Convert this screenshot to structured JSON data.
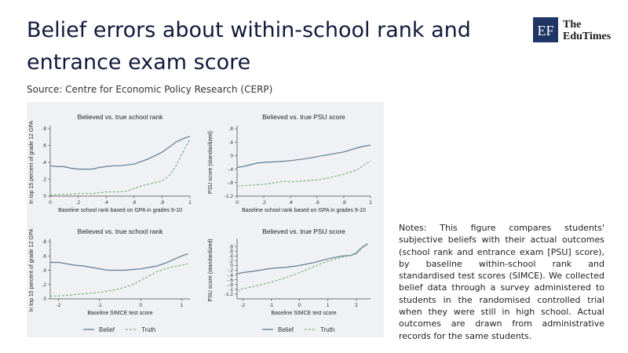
{
  "header": {
    "title": "Belief errors about within-school rank and entrance exam score",
    "source": "Source: Centre for Economic Policy Research (CERP)",
    "logo_mark": "EF",
    "logo_line1": "The",
    "logo_line2": "EduTimes"
  },
  "notes": "Notes: This figure compares students' subjective beliefs with their actual outcomes (school rank and entrance exam [PSU] score), by baseline within-school rank and standardised test scores (SIMCE). We collected belief data through a survey administered to students in the randomised controlled trial when they were still in high school. Actual outcomes are drawn from administrative records for the same students.",
  "colors": {
    "panel_bg": "#f0f1f4",
    "belief": "#5a7a93",
    "truth": "#7ab57a",
    "logo": "#1f3563"
  },
  "chart_data": [
    {
      "type": "line",
      "title": "Believed vs. true school rank",
      "xlabel": "Baseline school rank based on GPA in grades 9-10",
      "ylabel": "In top 15 percent of grade 12 GPA",
      "xlim": [
        0,
        1
      ],
      "ylim": [
        0,
        0.8
      ],
      "xticks": [
        "0",
        ".2",
        ".4",
        ".6",
        ".8",
        "1"
      ],
      "xtickvals": [
        0,
        0.2,
        0.4,
        0.6,
        0.8,
        1
      ],
      "yticks": [
        "0",
        ".2",
        ".4",
        ".6",
        ".8"
      ],
      "ytickvals": [
        0,
        0.2,
        0.4,
        0.6,
        0.8
      ],
      "series": [
        {
          "name": "Belief",
          "style": "solid",
          "x": [
            0,
            0.05,
            0.1,
            0.15,
            0.2,
            0.25,
            0.3,
            0.35,
            0.4,
            0.45,
            0.5,
            0.55,
            0.6,
            0.65,
            0.7,
            0.75,
            0.8,
            0.85,
            0.9,
            0.95,
            1.0
          ],
          "y": [
            0.36,
            0.35,
            0.35,
            0.33,
            0.32,
            0.32,
            0.32,
            0.34,
            0.35,
            0.36,
            0.36,
            0.37,
            0.38,
            0.41,
            0.44,
            0.48,
            0.52,
            0.58,
            0.64,
            0.68,
            0.71
          ]
        },
        {
          "name": "Truth",
          "style": "dashed",
          "x": [
            0,
            0.05,
            0.1,
            0.15,
            0.2,
            0.25,
            0.3,
            0.35,
            0.4,
            0.45,
            0.5,
            0.55,
            0.6,
            0.65,
            0.7,
            0.75,
            0.8,
            0.85,
            0.9,
            0.95,
            1.0
          ],
          "y": [
            0.01,
            0.02,
            0.02,
            0.02,
            0.03,
            0.03,
            0.03,
            0.04,
            0.05,
            0.05,
            0.05,
            0.06,
            0.09,
            0.12,
            0.14,
            0.16,
            0.18,
            0.24,
            0.36,
            0.52,
            0.68
          ]
        }
      ]
    },
    {
      "type": "line",
      "title": "Believed vs. true PSU score",
      "xlabel": "Baseline school rank based on GPA in grades 9-10",
      "ylabel": "PSU score (standardized)",
      "xlim": [
        0,
        1
      ],
      "ylim": [
        -1.2,
        0.8
      ],
      "xticks": [
        "0",
        ".2",
        ".4",
        ".6",
        ".8",
        "1"
      ],
      "xtickvals": [
        0,
        0.2,
        0.4,
        0.6,
        0.8,
        1
      ],
      "yticks": [
        ".8",
        ".4",
        "0",
        "-.4",
        "-.8",
        "-1.2"
      ],
      "ytickvals": [
        0.8,
        0.4,
        0,
        -0.4,
        -0.8,
        -1.2
      ],
      "series": [
        {
          "name": "Belief",
          "style": "solid",
          "x": [
            0,
            0.05,
            0.1,
            0.15,
            0.2,
            0.3,
            0.4,
            0.5,
            0.6,
            0.7,
            0.8,
            0.9,
            0.95,
            1.0
          ],
          "y": [
            -0.35,
            -0.32,
            -0.27,
            -0.22,
            -0.2,
            -0.18,
            -0.15,
            -0.1,
            -0.03,
            0.04,
            0.11,
            0.23,
            0.28,
            0.31
          ]
        },
        {
          "name": "Truth",
          "style": "dashed",
          "x": [
            0,
            0.1,
            0.2,
            0.3,
            0.35,
            0.4,
            0.5,
            0.6,
            0.7,
            0.8,
            0.9,
            0.95,
            1.0
          ],
          "y": [
            -0.9,
            -0.88,
            -0.85,
            -0.79,
            -0.76,
            -0.78,
            -0.75,
            -0.72,
            -0.65,
            -0.55,
            -0.42,
            -0.28,
            -0.15
          ]
        }
      ]
    },
    {
      "type": "line",
      "title": "Believed vs. true school rank",
      "xlabel": "Baseline SIMCE test score",
      "ylabel": "In top 15 percent of grade 12 GPA",
      "xlim": [
        -2.2,
        1.2
      ],
      "ylim": [
        0,
        0.8
      ],
      "xticks": [
        "-2",
        "-1",
        "0",
        "1"
      ],
      "xtickvals": [
        -2,
        -1,
        0,
        1
      ],
      "yticks": [
        "0",
        ".2",
        ".4",
        ".6",
        ".8"
      ],
      "ytickvals": [
        0,
        0.2,
        0.4,
        0.6,
        0.8
      ],
      "series": [
        {
          "name": "Belief",
          "style": "solid",
          "x": [
            -2.2,
            -2,
            -1.8,
            -1.6,
            -1.4,
            -1.2,
            -1.0,
            -0.8,
            -0.6,
            -0.4,
            -0.2,
            0,
            0.2,
            0.4,
            0.6,
            0.8,
            1.0,
            1.15
          ],
          "y": [
            0.51,
            0.51,
            0.49,
            0.47,
            0.46,
            0.44,
            0.42,
            0.4,
            0.4,
            0.4,
            0.41,
            0.42,
            0.44,
            0.46,
            0.5,
            0.55,
            0.6,
            0.63
          ]
        },
        {
          "name": "Truth",
          "style": "dashed",
          "x": [
            -2.2,
            -2,
            -1.8,
            -1.6,
            -1.4,
            -1.2,
            -1.0,
            -0.8,
            -0.6,
            -0.4,
            -0.2,
            0,
            0.2,
            0.4,
            0.6,
            0.8,
            1.0,
            1.15
          ],
          "y": [
            0.04,
            0.04,
            0.05,
            0.06,
            0.07,
            0.08,
            0.09,
            0.11,
            0.13,
            0.16,
            0.2,
            0.26,
            0.32,
            0.38,
            0.42,
            0.45,
            0.47,
            0.49
          ]
        }
      ]
    },
    {
      "type": "line",
      "title": "Believed vs. true PSU score",
      "xlabel": "Baseline SIMCE test score",
      "ylabel": "PSU score (standardized)",
      "xlim": [
        -2.2,
        2.5
      ],
      "ylim": [
        -1.4,
        1.0
      ],
      "xticks": [
        "-2",
        "-1",
        "0",
        "1",
        "2"
      ],
      "xtickvals": [
        -2,
        -1,
        0,
        1,
        2
      ],
      "yticks": [
        ".8",
        ".6",
        ".4",
        ".2",
        "0",
        "-.2",
        "-.4",
        "-.6",
        "-.8",
        "-1",
        "-1.2"
      ],
      "ytickvals": [
        0.8,
        0.6,
        0.4,
        0.2,
        0,
        -0.2,
        -0.4,
        -0.6,
        -0.8,
        -1,
        -1.2
      ],
      "series": [
        {
          "name": "Belief",
          "style": "solid",
          "x": [
            -2.2,
            -2,
            -1.5,
            -1,
            -0.5,
            0,
            0.5,
            1,
            1.5,
            1.8,
            2.0,
            2.2,
            2.4
          ],
          "y": [
            -0.35,
            -0.3,
            -0.22,
            -0.12,
            -0.08,
            0.0,
            0.12,
            0.28,
            0.4,
            0.42,
            0.5,
            0.75,
            0.9
          ]
        },
        {
          "name": "Truth",
          "style": "dashed",
          "x": [
            -2.2,
            -2,
            -1.5,
            -1,
            -0.5,
            0,
            0.5,
            1,
            1.5,
            1.8,
            2.0,
            2.2,
            2.4
          ],
          "y": [
            -1.05,
            -0.98,
            -0.85,
            -0.7,
            -0.52,
            -0.3,
            -0.05,
            0.18,
            0.35,
            0.42,
            0.55,
            0.78,
            0.92
          ]
        }
      ]
    }
  ],
  "legend": {
    "belief_label": "Belief",
    "truth_label": "Truth"
  }
}
